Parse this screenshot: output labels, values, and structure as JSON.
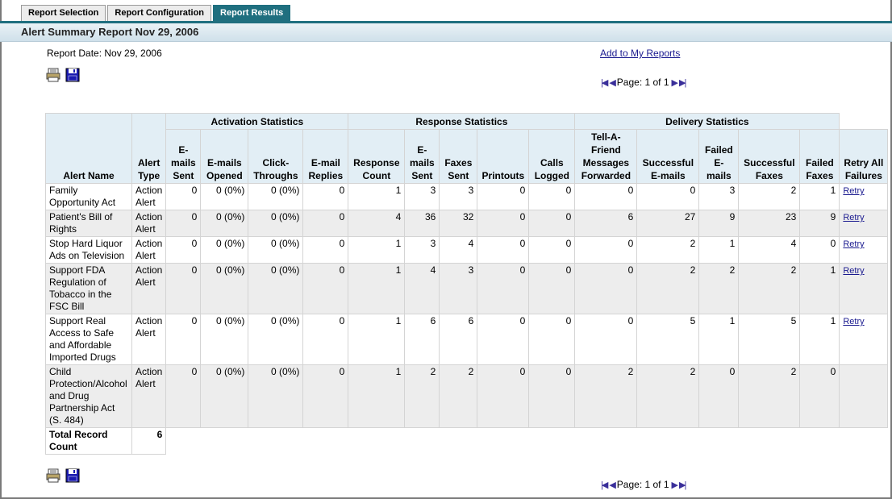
{
  "tabs": [
    {
      "label": "Report Selection"
    },
    {
      "label": "Report Configuration"
    },
    {
      "label": "Report Results"
    }
  ],
  "report": {
    "title": "Alert Summary Report Nov 29, 2006",
    "date_text": "Report Date: Nov 29, 2006",
    "add_link": "Add to My Reports",
    "pager_text": "Page: 1 of 1"
  },
  "icons": {
    "print": "printer-icon",
    "save": "floppy-disk-icon"
  },
  "colors": {
    "tab_active": "#1f6f7f",
    "header_bg": "#e2eef5",
    "link": "#1a1a8f"
  },
  "table": {
    "groups": [
      "Activation Statistics",
      "Response Statistics",
      "Delivery Statistics"
    ],
    "headers": {
      "alert_name": "Alert Name",
      "alert_type": "Alert Type",
      "emails_sent": "E-mails Sent",
      "emails_opened": "E-mails Opened",
      "click_throughs": "Click-Throughs",
      "email_replies": "E-mail Replies",
      "response_count": "Response Count",
      "resp_emails_sent": "E-mails Sent",
      "faxes_sent": "Faxes Sent",
      "printouts": "Printouts",
      "calls_logged": "Calls Logged",
      "taf": "Tell-A-Friend Messages Forwarded",
      "successful_emails": "Successful E-mails",
      "failed_emails": "Failed E-mails",
      "successful_faxes": "Successful Faxes",
      "failed_faxes": "Failed Faxes",
      "retry_all": "Retry All Failures"
    },
    "rows": [
      {
        "name": "Family Opportunity Act",
        "type": "Action Alert",
        "es": "0",
        "eo": "0 (0%)",
        "ct": "0 (0%)",
        "er": "0",
        "rc": "1",
        "res": "3",
        "fs": "3",
        "pr": "0",
        "cl": "0",
        "taf": "0",
        "se": "0",
        "fe": "3",
        "sf": "2",
        "ff": "1",
        "retry": "Retry"
      },
      {
        "name": "Patient's Bill of Rights",
        "type": "Action Alert",
        "es": "0",
        "eo": "0 (0%)",
        "ct": "0 (0%)",
        "er": "0",
        "rc": "4",
        "res": "36",
        "fs": "32",
        "pr": "0",
        "cl": "0",
        "taf": "6",
        "se": "27",
        "fe": "9",
        "sf": "23",
        "ff": "9",
        "retry": "Retry"
      },
      {
        "name": "Stop Hard Liquor Ads on Television",
        "type": "Action Alert",
        "es": "0",
        "eo": "0 (0%)",
        "ct": "0 (0%)",
        "er": "0",
        "rc": "1",
        "res": "3",
        "fs": "4",
        "pr": "0",
        "cl": "0",
        "taf": "0",
        "se": "2",
        "fe": "1",
        "sf": "4",
        "ff": "0",
        "retry": "Retry"
      },
      {
        "name": "Support FDA Regulation of Tobacco in the FSC Bill",
        "type": "Action Alert",
        "es": "0",
        "eo": "0 (0%)",
        "ct": "0 (0%)",
        "er": "0",
        "rc": "1",
        "res": "4",
        "fs": "3",
        "pr": "0",
        "cl": "0",
        "taf": "0",
        "se": "2",
        "fe": "2",
        "sf": "2",
        "ff": "1",
        "retry": "Retry"
      },
      {
        "name": "Support Real Access to Safe and Affordable Imported Drugs",
        "type": "Action Alert",
        "es": "0",
        "eo": "0 (0%)",
        "ct": "0 (0%)",
        "er": "0",
        "rc": "1",
        "res": "6",
        "fs": "6",
        "pr": "0",
        "cl": "0",
        "taf": "0",
        "se": "5",
        "fe": "1",
        "sf": "5",
        "ff": "1",
        "retry": "Retry"
      },
      {
        "name": "Child Protection/Alcohol and Drug Partnership Act (S. 484)",
        "type": "Action Alert",
        "es": "0",
        "eo": "0 (0%)",
        "ct": "0 (0%)",
        "er": "0",
        "rc": "1",
        "res": "2",
        "fs": "2",
        "pr": "0",
        "cl": "0",
        "taf": "2",
        "se": "2",
        "fe": "0",
        "sf": "2",
        "ff": "0",
        "retry": ""
      }
    ],
    "total_label": "Total Record Count",
    "total_value": "6"
  }
}
